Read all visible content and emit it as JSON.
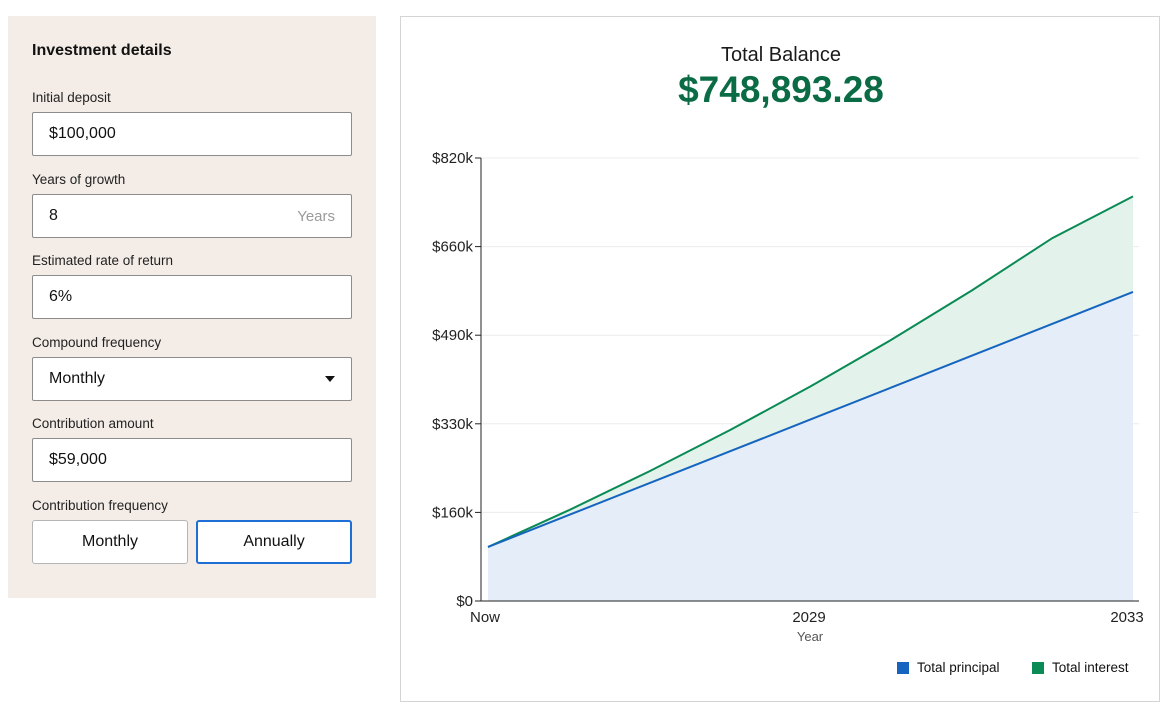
{
  "form": {
    "title": "Investment details",
    "fields": {
      "initial_deposit": {
        "label": "Initial deposit",
        "value": "$100,000"
      },
      "years_of_growth": {
        "label": "Years of growth",
        "value": "8",
        "suffix": "Years"
      },
      "rate_of_return": {
        "label": "Estimated rate of return",
        "value": "6%"
      },
      "compound_frequency": {
        "label": "Compound frequency",
        "value": "Monthly"
      },
      "contribution_amount": {
        "label": "Contribution amount",
        "value": "$59,000"
      }
    },
    "contribution_frequency": {
      "label": "Contribution frequency",
      "options": [
        "Monthly",
        "Annually"
      ],
      "selected": "Annually"
    }
  },
  "summary": {
    "label": "Total Balance",
    "value": "$748,893.28"
  },
  "colors": {
    "panel_bg": "#f4ede7",
    "accent_green": "#0a6b45",
    "principal": "#1565c0",
    "interest": "#0a8a55",
    "selected_border": "#1d6fd6"
  },
  "chart_data": {
    "type": "area",
    "x": [
      0,
      1,
      2,
      3,
      4,
      5,
      6,
      7,
      8
    ],
    "xticks": [
      "Now",
      "2029",
      "2033"
    ],
    "xlabel": "Year",
    "yticks": [
      "$0",
      "$160k",
      "$330k",
      "$490k",
      "$660k",
      "$820k"
    ],
    "ylim": [
      0,
      820000
    ],
    "grid": true,
    "legend_position": "bottom-right",
    "series": [
      {
        "name": "Total principal",
        "values": [
          100000,
          159000,
          218000,
          277000,
          336000,
          395000,
          454000,
          513000,
          572000
        ]
      },
      {
        "name": "Total interest",
        "values": [
          100000,
          167800,
          239900,
          316200,
          397200,
          483300,
          574700,
          671800,
          748893
        ]
      }
    ]
  }
}
